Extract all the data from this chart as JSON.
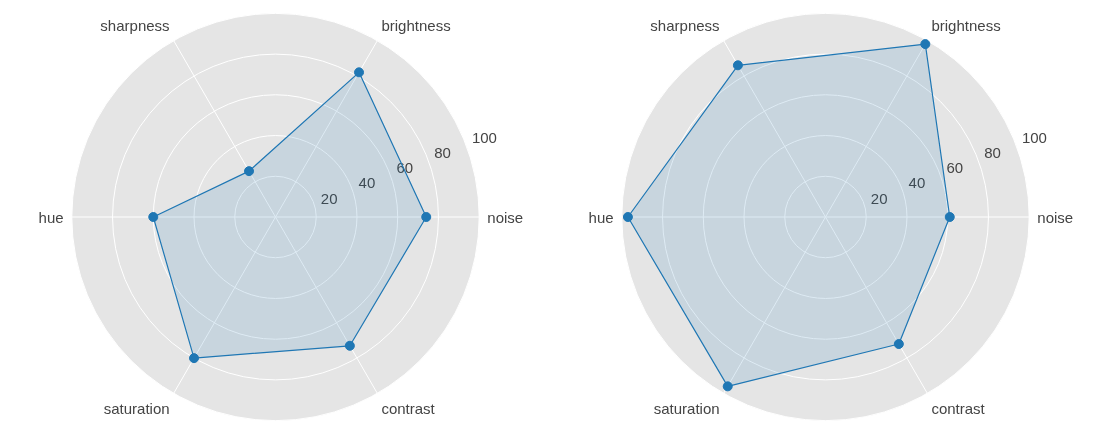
{
  "chart_data": [
    {
      "type": "radar",
      "categories": [
        "brightness",
        "noise",
        "contrast",
        "saturation",
        "hue",
        "sharpness"
      ],
      "series": [
        {
          "color": "#1f77b4",
          "values": [
            82,
            74,
            73,
            80,
            60,
            26
          ]
        }
      ],
      "ylim": [
        0,
        100
      ],
      "yticks": [
        20,
        40,
        60,
        80,
        100
      ],
      "grid": true,
      "marker": "circle"
    },
    {
      "type": "radar",
      "categories": [
        "brightness",
        "noise",
        "contrast",
        "saturation",
        "hue",
        "sharpness"
      ],
      "series": [
        {
          "color": "#1f77b4",
          "values": [
            98,
            61,
            72,
            96,
            97,
            86
          ]
        }
      ],
      "ylim": [
        0,
        100
      ],
      "yticks": [
        20,
        40,
        60,
        80,
        100
      ],
      "grid": true,
      "marker": "circle"
    }
  ]
}
